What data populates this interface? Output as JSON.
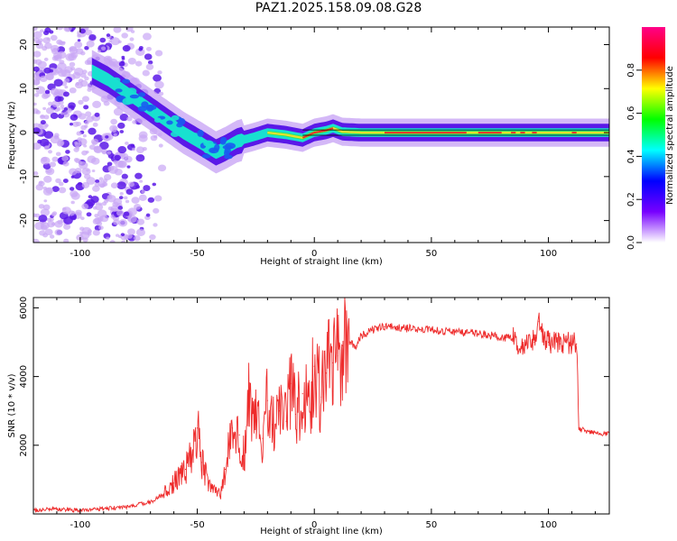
{
  "title": "PAZ1.2025.158.09.08.G28",
  "colors": {
    "snr_line": "#ee2b2b",
    "spectrum_core": "#e8322a",
    "spectrum_mid": "#18e0d0",
    "spectrum_outer": "#5a18e8",
    "spectrum_halo": "#c9a6f5"
  },
  "chart_data": [
    {
      "type": "heatmap",
      "title": "PAZ1.2025.158.09.08.G28",
      "xlabel": "Height of straight line (km)",
      "ylabel": "Frequency (Hz)",
      "xlim": [
        -120,
        126
      ],
      "ylim": [
        -25,
        24
      ],
      "x_ticks": [
        -100,
        -50,
        0,
        50,
        100
      ],
      "x_tick_labels": [
        "-100",
        "-50",
        "0",
        "50",
        "100"
      ],
      "y_ticks": [
        -20,
        -10,
        0,
        10,
        20
      ],
      "y_tick_labels": [
        "-20",
        "-10",
        "0",
        "10",
        "20"
      ],
      "ridge": {
        "x": [
          -95,
          -88,
          -80,
          -72,
          -64,
          -56,
          -48,
          -42,
          -38,
          -33,
          -26,
          -20,
          -12,
          -5,
          0,
          5,
          8,
          12,
          20,
          35,
          60,
          90,
          126
        ],
        "y": [
          14,
          12,
          9,
          6,
          3,
          0,
          -2.5,
          -4.5,
          -3.5,
          -2,
          -1,
          0,
          -0.5,
          -1.2,
          0,
          0.5,
          1,
          0.2,
          0,
          0,
          0,
          0,
          0
        ]
      },
      "colorbar": {
        "label": "Normalized spectral amplitude",
        "range": [
          0,
          1
        ],
        "ticks": [
          0.0,
          0.2,
          0.4,
          0.6,
          0.8
        ],
        "tick_labels": [
          "0.0",
          "0.2",
          "0.4",
          "0.6",
          "0.8"
        ],
        "stops": [
          "#ffffff",
          "#7700ff",
          "#0000ff",
          "#00ffff",
          "#00ff00",
          "#ffff00",
          "#ff0000",
          "#ff0088"
        ]
      },
      "grid": false
    },
    {
      "type": "line",
      "xlabel": "Height of straight line (km)",
      "ylabel": "SNR (10 * v/v)",
      "xlim": [
        -120,
        126
      ],
      "ylim": [
        0,
        6300
      ],
      "x_ticks": [
        -100,
        -50,
        0,
        50,
        100
      ],
      "x_tick_labels": [
        "-100",
        "-50",
        "0",
        "50",
        "100"
      ],
      "y_ticks": [
        2000,
        4000,
        6000
      ],
      "y_tick_labels": [
        "2000",
        "4000",
        "6000"
      ],
      "series": [
        {
          "x": [
            -120,
            -110,
            -100,
            -90,
            -80,
            -70,
            -65,
            -60,
            -55,
            -52,
            -50,
            -48,
            -45,
            -42,
            -40,
            -38,
            -35,
            -32,
            -30,
            -28,
            -25,
            -22,
            -20,
            -18,
            -15,
            -12,
            -10,
            -8,
            -5,
            -2,
            0,
            3,
            5,
            8,
            10,
            12,
            15,
            18,
            20,
            25,
            30,
            35,
            40,
            50,
            60,
            70,
            80,
            85,
            88,
            90,
            92,
            94,
            96,
            98,
            100,
            105,
            110,
            112,
            113,
            114,
            118,
            122,
            126
          ],
          "values": [
            100,
            150,
            100,
            150,
            200,
            350,
            550,
            900,
            1300,
            1800,
            2500,
            1500,
            900,
            650,
            500,
            1300,
            2500,
            2300,
            1700,
            3500,
            2800,
            2200,
            3300,
            2600,
            3000,
            2700,
            3800,
            2900,
            3500,
            3000,
            4300,
            3400,
            4100,
            4400,
            4600,
            4900,
            5000,
            4900,
            5200,
            5350,
            5450,
            5450,
            5400,
            5350,
            5300,
            5250,
            5150,
            5100,
            4800,
            5000,
            5200,
            5000,
            5600,
            5100,
            5000,
            4950,
            4950,
            4950,
            2500,
            2450,
            2400,
            2350,
            2350
          ]
        }
      ],
      "grid": false
    }
  ]
}
